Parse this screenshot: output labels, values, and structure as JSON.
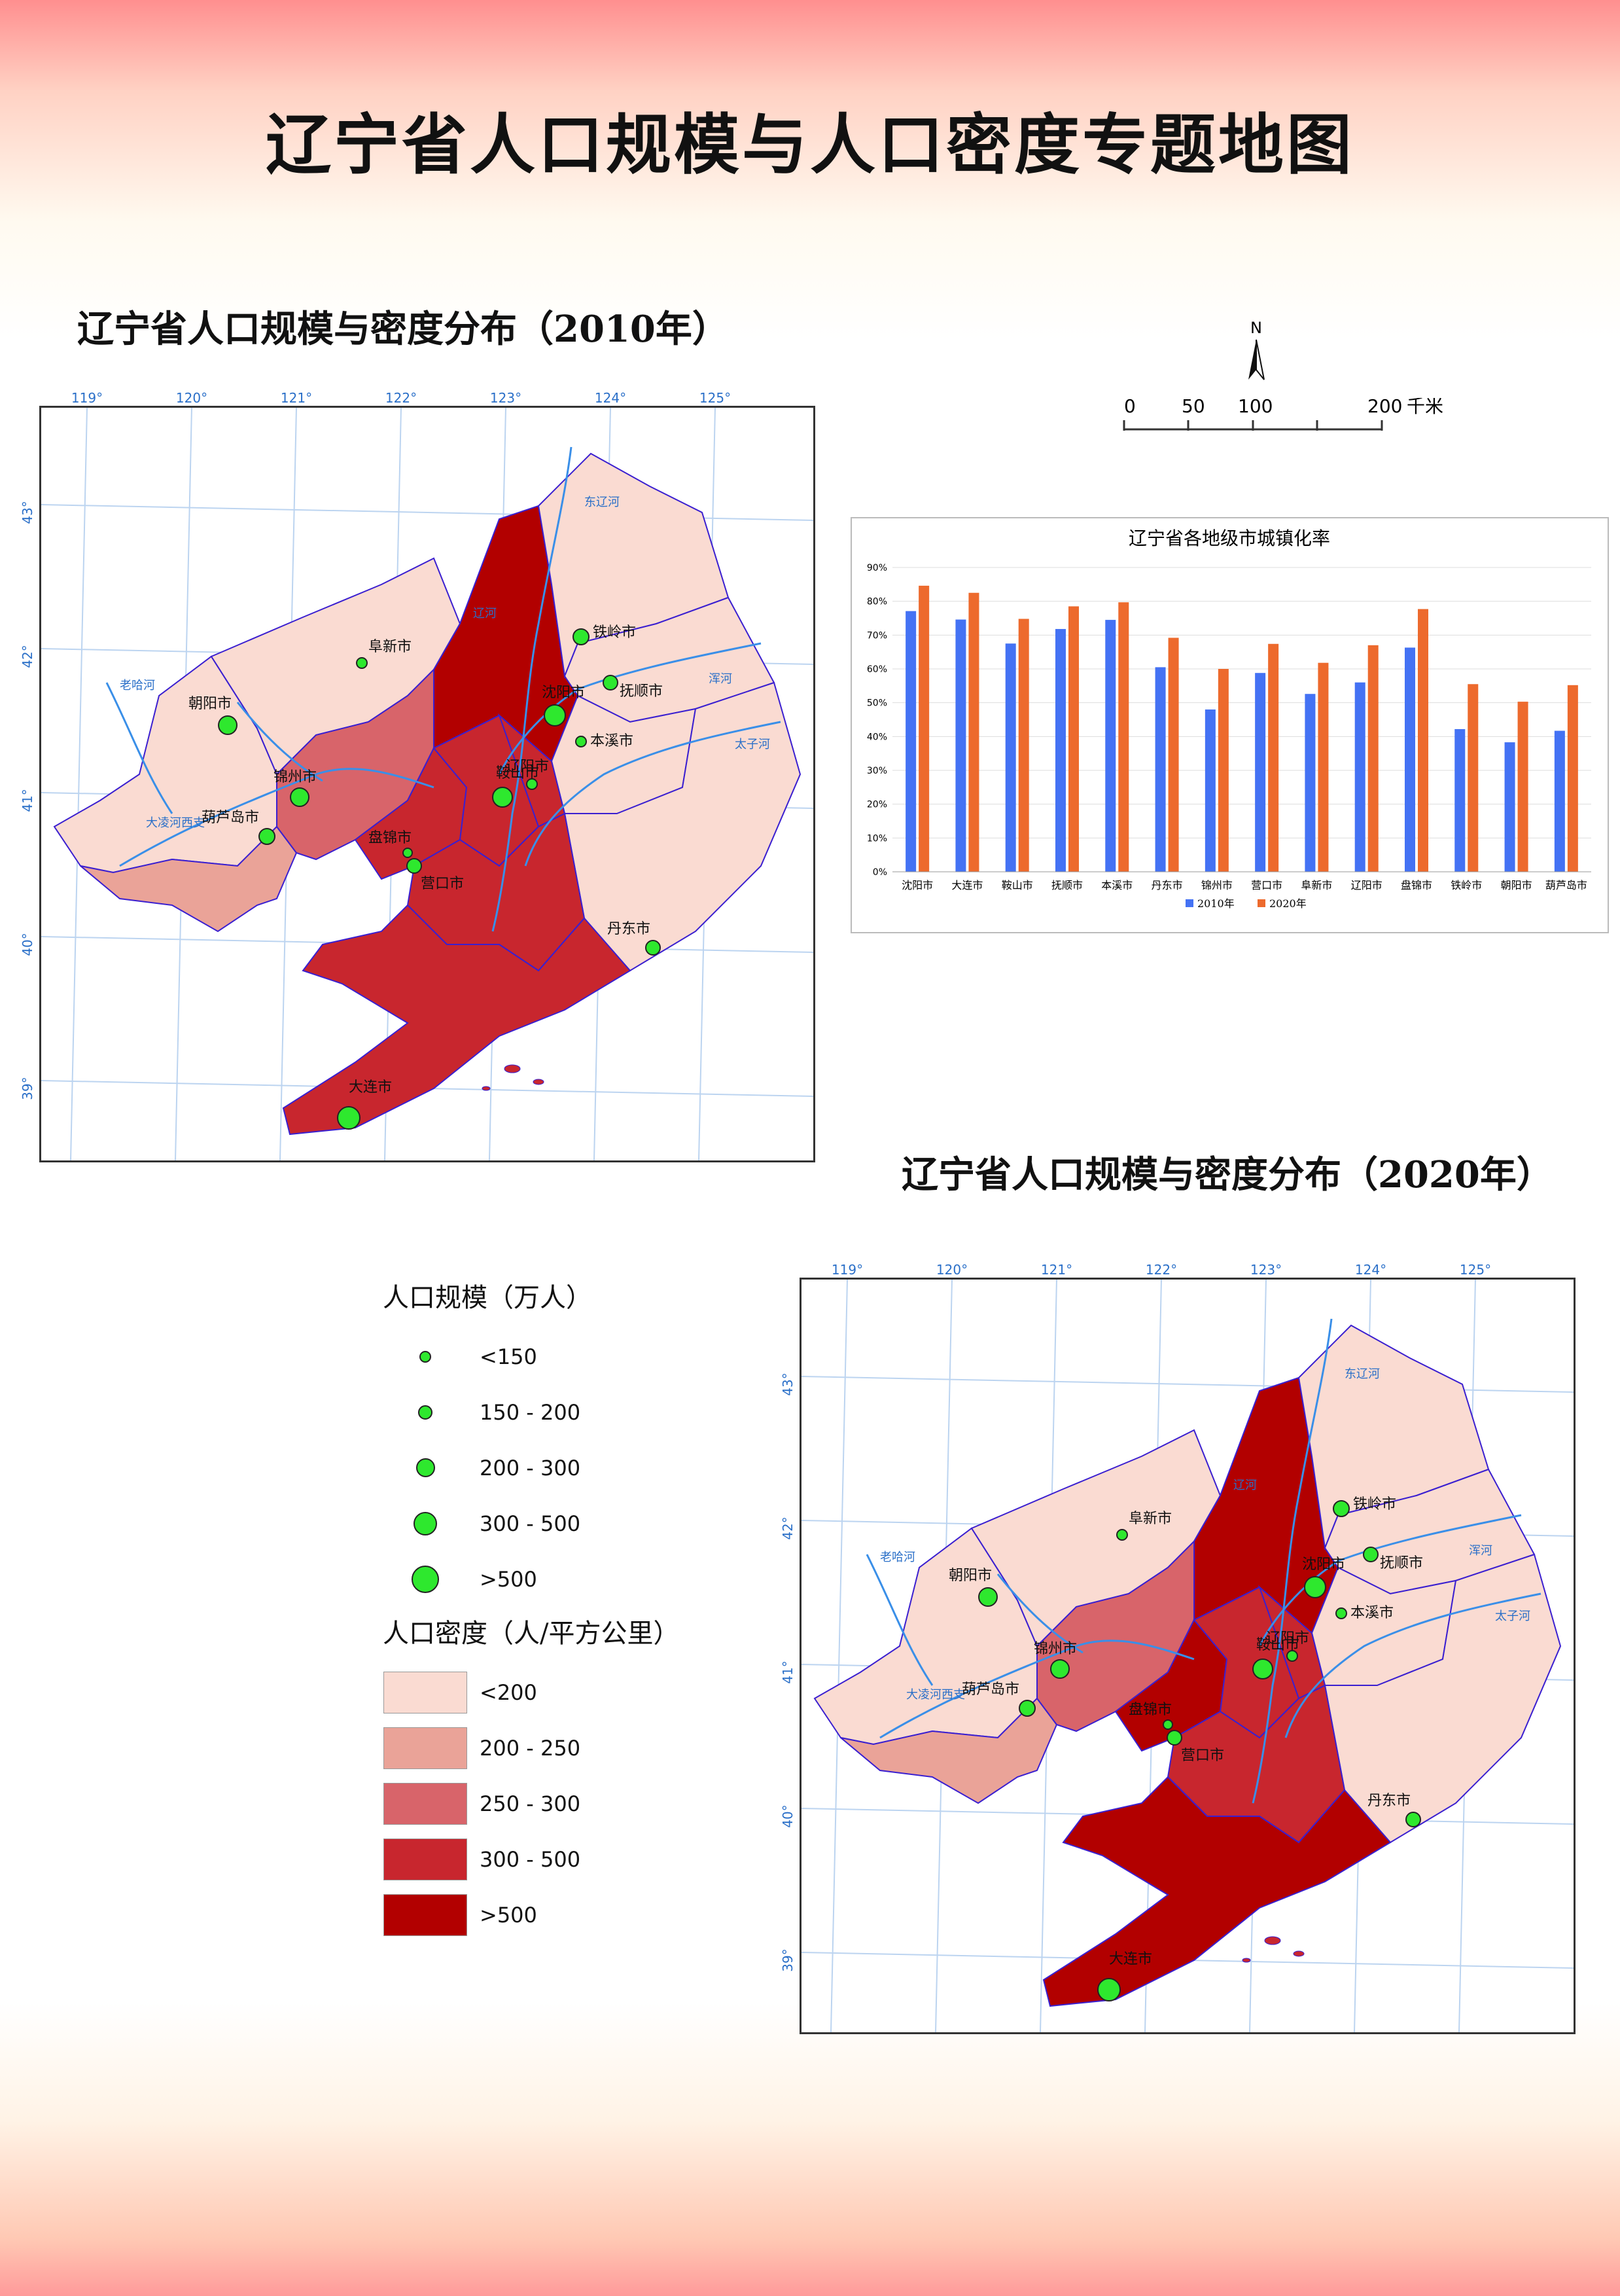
{
  "page": {
    "title": "辽宁省人口规模与人口密度专题地图"
  },
  "map_2010": {
    "title": "辽宁省人口规模与密度分布（2010年）",
    "lon_labels": [
      "119°",
      "120°",
      "121°",
      "122°",
      "123°",
      "124°",
      "125°"
    ],
    "lat_labels": [
      "43°",
      "42°",
      "41°",
      "40°",
      "39°"
    ],
    "cities": [
      "沈阳市",
      "大连市",
      "鞍山市",
      "抚顺市",
      "本溪市",
      "丹东市",
      "锦州市",
      "营口市",
      "阜新市",
      "辽阳市",
      "盘锦市",
      "铁岭市",
      "朝阳市",
      "葫芦岛市"
    ]
  },
  "map_2020": {
    "title": "辽宁省人口规模与密度分布（2020年）",
    "lon_labels": [
      "119°",
      "120°",
      "121°",
      "122°",
      "123°",
      "124°",
      "125°"
    ],
    "lat_labels": [
      "43°",
      "42°",
      "41°",
      "40°",
      "39°"
    ],
    "cities": [
      "沈阳市",
      "大连市",
      "鞍山市",
      "抚顺市",
      "本溪市",
      "丹东市",
      "锦州市",
      "营口市",
      "阜新市",
      "辽阳市",
      "盘锦市",
      "铁岭市",
      "朝阳市",
      "葫芦岛市"
    ]
  },
  "rivers": [
    "东辽河",
    "浑河",
    "太子河",
    "大凌河",
    "大凌河西支",
    "老哈河",
    "辽河"
  ],
  "compass": {
    "letter": "N"
  },
  "scale_bar": {
    "ticks": [
      "0",
      "50",
      "100",
      "200"
    ],
    "unit": "千米"
  },
  "legend": {
    "size_title": "人口规模（万人）",
    "size_classes": [
      "<150",
      "150 - 200",
      "200 - 300",
      "300 - 500",
      ">500"
    ],
    "density_title": "人口密度（人/平方公里）",
    "density_classes": [
      "<200",
      "200 - 250",
      "250 - 300",
      "300 - 500",
      ">500"
    ],
    "density_colors": [
      "#fadbd2",
      "#eaa398",
      "#d8646a",
      "#c8262e",
      "#b20000"
    ],
    "point_color": "#2ee82e"
  },
  "chart_data": {
    "type": "bar",
    "title": "辽宁省各地级市城镇化率",
    "categories": [
      "沈阳市",
      "大连市",
      "鞍山市",
      "抚顺市",
      "本溪市",
      "丹东市",
      "锦州市",
      "营口市",
      "阜新市",
      "辽阳市",
      "盘锦市",
      "铁岭市",
      "朝阳市",
      "葫芦岛市"
    ],
    "series": [
      {
        "name": "2010年",
        "color": "#4472f4",
        "values": [
          77.1,
          74.6,
          67.5,
          71.8,
          74.5,
          60.5,
          48.0,
          58.8,
          52.6,
          56.0,
          66.3,
          42.2,
          38.3,
          41.7
        ]
      },
      {
        "name": "2020年",
        "color": "#ed6a2d",
        "values": [
          84.6,
          82.5,
          74.8,
          78.5,
          79.7,
          69.2,
          60.0,
          67.4,
          61.8,
          67.0,
          77.7,
          55.5,
          50.3,
          55.2
        ]
      }
    ],
    "ylim": [
      0,
      90
    ],
    "yticks": [
      "0%",
      "10%",
      "20%",
      "30%",
      "40%",
      "50%",
      "60%",
      "70%",
      "80%",
      "90%"
    ],
    "legend_position": "bottom",
    "grid": true
  }
}
